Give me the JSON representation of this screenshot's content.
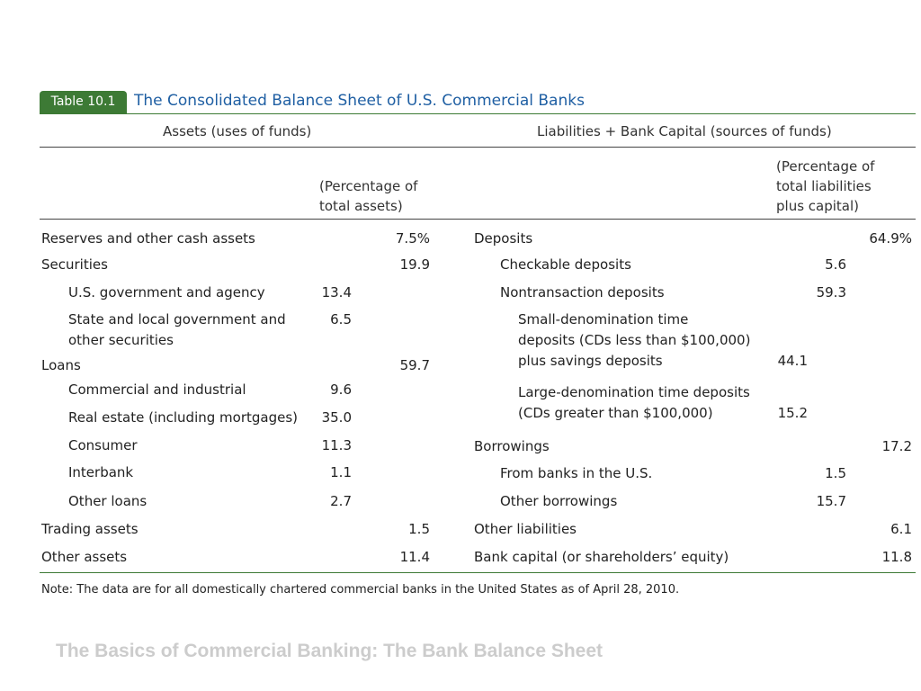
{
  "table": {
    "badge": "Table 10.1",
    "title": "The Consolidated Balance Sheet of U.S. Commercial Banks",
    "assets_header": "Assets (uses of funds)",
    "liabilities_header": "Liabilities + Bank Capital (sources of funds)",
    "assets_pct_header": [
      "(Percentage of",
      "total assets)"
    ],
    "liab_pct_header": [
      "(Percentage of",
      "total liabilities",
      "plus capital)"
    ],
    "assets_rows": [
      {
        "label": "Reserves and other cash assets",
        "sub": "",
        "total": "7.5%"
      },
      {
        "label": "Securities",
        "sub": "",
        "total": "19.9"
      },
      {
        "label": "U.S. government and agency",
        "sub": "13.4",
        "total": ""
      },
      {
        "label": "State and local government and",
        "sub": "6.5",
        "total": ""
      },
      {
        "label": "other securities",
        "sub": "",
        "total": ""
      },
      {
        "label": "Loans",
        "sub": "",
        "total": "59.7"
      },
      {
        "label": "Commercial and industrial",
        "sub": "9.6",
        "total": ""
      },
      {
        "label": "Real estate (including mortgages)",
        "sub": "35.0",
        "total": ""
      },
      {
        "label": "Consumer",
        "sub": "11.3",
        "total": ""
      },
      {
        "label": "Interbank",
        "sub": "1.1",
        "total": ""
      },
      {
        "label": "Other loans",
        "sub": "2.7",
        "total": ""
      },
      {
        "label": "Trading assets",
        "sub": "",
        "total": "1.5"
      },
      {
        "label": "Other assets",
        "sub": "",
        "total": "11.4"
      }
    ],
    "liab_rows": [
      {
        "label": "Deposits",
        "subsub": "",
        "sub": "",
        "total": "64.9%"
      },
      {
        "label": "Checkable deposits",
        "subsub": "",
        "sub": "5.6",
        "total": ""
      },
      {
        "label": "Nontransaction deposits",
        "subsub": "",
        "sub": "59.3",
        "total": ""
      },
      {
        "label": "Small-denomination time",
        "subsub": "",
        "sub": "",
        "total": ""
      },
      {
        "label": "deposits (CDs less than $100,000)",
        "subsub": "",
        "sub": "",
        "total": ""
      },
      {
        "label": "plus savings deposits",
        "subsub": "44.1",
        "sub": "",
        "total": ""
      },
      {
        "label": "Large-denomination time deposits",
        "subsub": "",
        "sub": "",
        "total": ""
      },
      {
        "label": "(CDs greater than $100,000)",
        "subsub": "15.2",
        "sub": "",
        "total": ""
      },
      {
        "label": "Borrowings",
        "subsub": "",
        "sub": "",
        "total": "17.2"
      },
      {
        "label": "From banks in the U.S.",
        "subsub": "",
        "sub": "1.5",
        "total": ""
      },
      {
        "label": "Other borrowings",
        "subsub": "",
        "sub": "15.7",
        "total": ""
      },
      {
        "label": "Other liabilities",
        "subsub": "",
        "sub": "",
        "total": "6.1"
      },
      {
        "label": "Bank capital (or shareholders’ equity)",
        "subsub": "",
        "sub": "",
        "total": "11.8"
      }
    ],
    "note": "Note: The data are for all domestically chartered commercial banks in the United States as of April 28, 2010."
  },
  "footer": "The Basics of Commercial Banking: The Bank Balance Sheet",
  "colors": {
    "badge": "#3d7a35",
    "title": "#1f5fa3",
    "rule_green": "#3d7a35",
    "footer": "#cccccc"
  }
}
